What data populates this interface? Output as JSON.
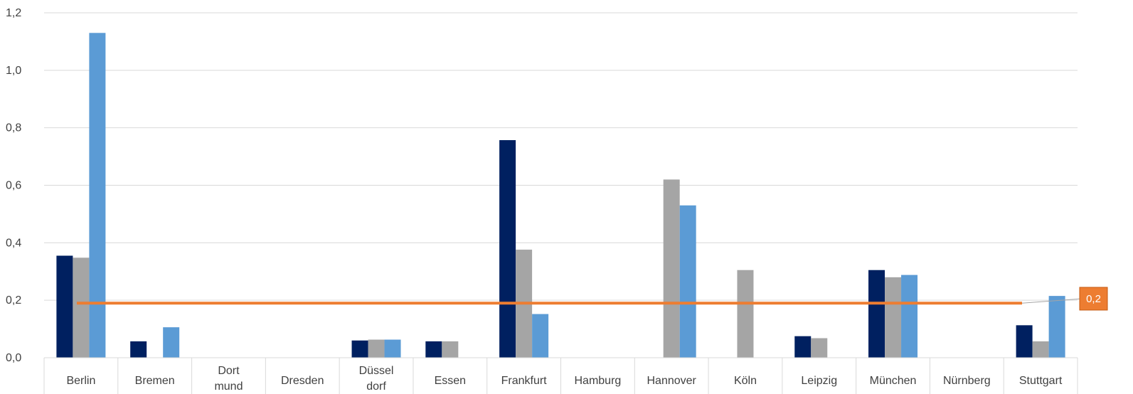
{
  "chart_data": {
    "type": "bar",
    "title": "",
    "xlabel": "",
    "ylabel": "",
    "ylim": [
      0,
      1.2
    ],
    "yticks": [
      "0,0",
      "0,2",
      "0,4",
      "0,6",
      "0,8",
      "1,0",
      "1,2"
    ],
    "ytick_values": [
      0,
      0.2,
      0.4,
      0.6,
      0.8,
      1.0,
      1.2
    ],
    "grid": true,
    "legend": "none",
    "categories": [
      [
        "Berlin"
      ],
      [
        "Bremen"
      ],
      [
        "Dort",
        "mund"
      ],
      [
        "Dresden"
      ],
      [
        "Düssel",
        "dorf"
      ],
      [
        "Essen"
      ],
      [
        "Frankfurt"
      ],
      [
        "Hamburg"
      ],
      [
        "Hannover"
      ],
      [
        "Köln"
      ],
      [
        "Leipzig"
      ],
      [
        "München"
      ],
      [
        "Nürnberg"
      ],
      [
        "Stuttgart"
      ]
    ],
    "series": [
      {
        "color": "#002060",
        "values": [
          0.355,
          0.057,
          0,
          0,
          0.06,
          0.057,
          0.757,
          0,
          0,
          0,
          0.075,
          0.305,
          0,
          0.113
        ]
      },
      {
        "color": "#a5a5a5",
        "values": [
          0.348,
          0,
          0,
          0,
          0.063,
          0.057,
          0.376,
          0,
          0.62,
          0.305,
          0.068,
          0.28,
          0,
          0.057
        ]
      },
      {
        "color": "#5b9bd5",
        "values": [
          1.13,
          0.106,
          0,
          0,
          0.063,
          0,
          0.152,
          0,
          0.53,
          0,
          0,
          0.288,
          0,
          0.215
        ]
      }
    ],
    "reference_line": {
      "value": 0.19,
      "color": "#ed7d31",
      "label": "0,2"
    }
  }
}
